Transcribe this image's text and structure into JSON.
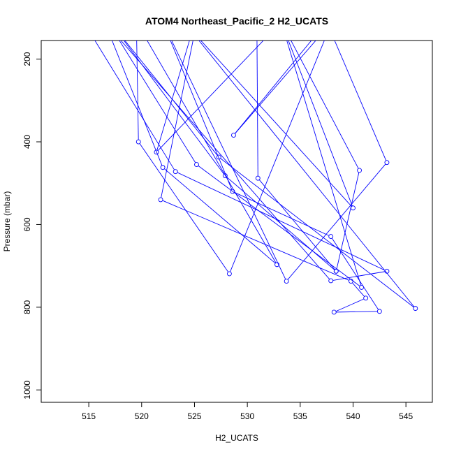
{
  "chart_data": {
    "type": "line",
    "title": "ATOM4 Northeast_Pacific_2 H2_UCATS",
    "xlabel": "H2_UCATS",
    "ylabel": "Pressure (mbar)",
    "xlim": [
      510.5,
      547.5
    ],
    "ylim": [
      1030,
      155
    ],
    "y_axis_reversed": true,
    "x_ticks": [
      515,
      520,
      525,
      530,
      535,
      540,
      545
    ],
    "y_ticks": [
      200,
      400,
      600,
      800,
      1000
    ],
    "grid": false,
    "legend": "none",
    "series_color": "#0000ff",
    "series": [
      {
        "points": [
          [
            514.5,
            110
          ],
          [
            523.2,
            472
          ],
          [
            543.2,
            713
          ],
          [
            537.9,
            736
          ],
          [
            516.5,
            110
          ],
          [
            522.0,
            462
          ],
          [
            532.8,
            697
          ],
          [
            519.5,
            110
          ],
          [
            519.7,
            400
          ],
          [
            528.3,
            719
          ],
          [
            538.0,
            110
          ],
          [
            528.7,
            384
          ],
          [
            537.5,
            110
          ],
          [
            543.2,
            450
          ],
          [
            533.7,
            737
          ],
          [
            522.0,
            110
          ],
          [
            528.6,
            520
          ],
          [
            537.9,
            629
          ],
          [
            542.5,
            810
          ],
          [
            538.2,
            812
          ],
          [
            541.2,
            778
          ],
          [
            539.8,
            737
          ],
          [
            521.8,
            540
          ],
          [
            525.6,
            62
          ],
          [
            521.4,
            425
          ],
          [
            533.2,
            110
          ],
          [
            540.0,
            560
          ],
          [
            524.0,
            110
          ],
          [
            545.9,
            803
          ],
          [
            527.3,
            437
          ],
          [
            517.0,
            110
          ],
          [
            527.9,
            482
          ],
          [
            538.4,
            713
          ],
          [
            540.6,
            469
          ],
          [
            533.2,
            110
          ],
          [
            540.8,
            752
          ],
          [
            525.2,
            455
          ],
          [
            516.8,
            110
          ],
          [
            530.9,
            110
          ],
          [
            531.0,
            488
          ],
          [
            538.4,
            713
          ]
        ]
      }
    ]
  }
}
